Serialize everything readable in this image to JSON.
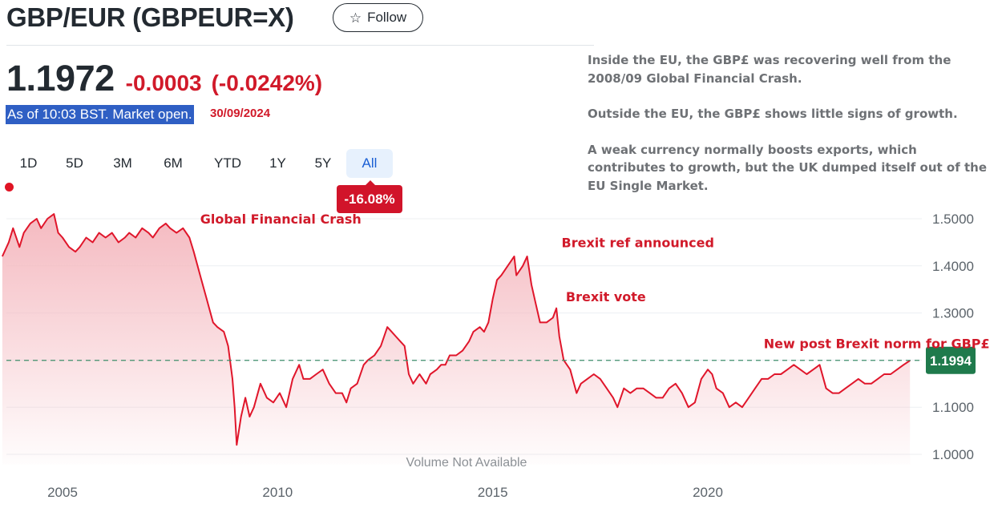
{
  "header": {
    "title": "GBP/EUR (GBPEUR=X)",
    "follow_label": "Follow",
    "star_icon": "star-icon"
  },
  "quote": {
    "price": "1.1972",
    "change": "-0.0003",
    "change_pct": "(-0.0242%)",
    "as_of": "As of 10:03 BST. Market open.",
    "date_note": "30/09/2024"
  },
  "commentary": [
    "Inside the EU, the GBP£ was recovering well from the 2008/09 Global Financial Crash.",
    "Outside the EU, the GBP£ shows little signs of growth.",
    "A weak currency normally boosts exports, which contributes to growth, but the UK dumped itself out of the EU Single Market."
  ],
  "range_tabs": [
    {
      "label": "1D",
      "active": false
    },
    {
      "label": "5D",
      "active": false
    },
    {
      "label": "3M",
      "active": false
    },
    {
      "label": "6M",
      "active": false
    },
    {
      "label": "YTD",
      "active": false
    },
    {
      "label": "1Y",
      "active": false
    },
    {
      "label": "5Y",
      "active": false
    },
    {
      "label": "All",
      "active": true
    }
  ],
  "period_change": "-16.08%",
  "colors": {
    "line": "#e0162b",
    "area_top": "#f4b6bd",
    "accent_red": "#d11a2a",
    "current_label_bg": "#1f7a4c",
    "reference_line": "#3f8f6b",
    "gridline": "#eceff2"
  },
  "chart_data": {
    "type": "area",
    "x_unit": "year",
    "xlim": [
      2003.6,
      2024.8
    ],
    "ylim": [
      0.98,
      1.53
    ],
    "x_ticks": [
      2005,
      2010,
      2015,
      2020
    ],
    "y_ticks": [
      1.0,
      1.1,
      1.2,
      1.3,
      1.4,
      1.5
    ],
    "y_tick_labels": [
      "1.0000",
      "1.1000",
      "1.2000",
      "1.3000",
      "1.4000",
      "1.5000"
    ],
    "grid": true,
    "current_value": "1.1994",
    "reference_line_value": 1.1994,
    "volume_note": "Volume Not Available",
    "series": [
      {
        "values": [
          [
            2003.6,
            1.42
          ],
          [
            2003.75,
            1.45
          ],
          [
            2003.85,
            1.48
          ],
          [
            2004.0,
            1.44
          ],
          [
            2004.1,
            1.47
          ],
          [
            2004.25,
            1.49
          ],
          [
            2004.4,
            1.5
          ],
          [
            2004.5,
            1.48
          ],
          [
            2004.65,
            1.5
          ],
          [
            2004.8,
            1.51
          ],
          [
            2004.9,
            1.47
          ],
          [
            2005.0,
            1.46
          ],
          [
            2005.15,
            1.44
          ],
          [
            2005.3,
            1.43
          ],
          [
            2005.4,
            1.44
          ],
          [
            2005.55,
            1.46
          ],
          [
            2005.7,
            1.45
          ],
          [
            2005.85,
            1.47
          ],
          [
            2006.0,
            1.46
          ],
          [
            2006.15,
            1.47
          ],
          [
            2006.3,
            1.45
          ],
          [
            2006.45,
            1.46
          ],
          [
            2006.55,
            1.47
          ],
          [
            2006.7,
            1.46
          ],
          [
            2006.85,
            1.48
          ],
          [
            2007.0,
            1.47
          ],
          [
            2007.1,
            1.46
          ],
          [
            2007.25,
            1.48
          ],
          [
            2007.4,
            1.49
          ],
          [
            2007.5,
            1.48
          ],
          [
            2007.65,
            1.47
          ],
          [
            2007.8,
            1.48
          ],
          [
            2007.95,
            1.46
          ],
          [
            2008.05,
            1.43
          ],
          [
            2008.2,
            1.38
          ],
          [
            2008.35,
            1.33
          ],
          [
            2008.5,
            1.28
          ],
          [
            2008.6,
            1.27
          ],
          [
            2008.75,
            1.26
          ],
          [
            2008.85,
            1.23
          ],
          [
            2008.95,
            1.16
          ],
          [
            2009.0,
            1.1
          ],
          [
            2009.05,
            1.02
          ],
          [
            2009.15,
            1.08
          ],
          [
            2009.25,
            1.12
          ],
          [
            2009.35,
            1.08
          ],
          [
            2009.45,
            1.1
          ],
          [
            2009.6,
            1.15
          ],
          [
            2009.75,
            1.12
          ],
          [
            2009.9,
            1.11
          ],
          [
            2010.05,
            1.13
          ],
          [
            2010.2,
            1.1
          ],
          [
            2010.35,
            1.16
          ],
          [
            2010.5,
            1.19
          ],
          [
            2010.6,
            1.16
          ],
          [
            2010.75,
            1.16
          ],
          [
            2010.9,
            1.17
          ],
          [
            2011.05,
            1.18
          ],
          [
            2011.2,
            1.15
          ],
          [
            2011.35,
            1.13
          ],
          [
            2011.5,
            1.13
          ],
          [
            2011.6,
            1.11
          ],
          [
            2011.7,
            1.14
          ],
          [
            2011.85,
            1.15
          ],
          [
            2012.0,
            1.19
          ],
          [
            2012.1,
            1.2
          ],
          [
            2012.25,
            1.21
          ],
          [
            2012.4,
            1.23
          ],
          [
            2012.55,
            1.27
          ],
          [
            2012.65,
            1.26
          ],
          [
            2012.75,
            1.25
          ],
          [
            2012.85,
            1.24
          ],
          [
            2012.95,
            1.23
          ],
          [
            2013.05,
            1.17
          ],
          [
            2013.15,
            1.15
          ],
          [
            2013.3,
            1.17
          ],
          [
            2013.45,
            1.15
          ],
          [
            2013.55,
            1.17
          ],
          [
            2013.7,
            1.18
          ],
          [
            2013.8,
            1.19
          ],
          [
            2013.9,
            1.19
          ],
          [
            2014.0,
            1.21
          ],
          [
            2014.15,
            1.21
          ],
          [
            2014.3,
            1.22
          ],
          [
            2014.45,
            1.24
          ],
          [
            2014.55,
            1.26
          ],
          [
            2014.7,
            1.27
          ],
          [
            2014.8,
            1.26
          ],
          [
            2014.9,
            1.28
          ],
          [
            2015.0,
            1.33
          ],
          [
            2015.1,
            1.37
          ],
          [
            2015.2,
            1.38
          ],
          [
            2015.35,
            1.4
          ],
          [
            2015.5,
            1.42
          ],
          [
            2015.55,
            1.38
          ],
          [
            2015.7,
            1.4
          ],
          [
            2015.8,
            1.42
          ],
          [
            2015.9,
            1.36
          ],
          [
            2016.0,
            1.32
          ],
          [
            2016.1,
            1.28
          ],
          [
            2016.25,
            1.28
          ],
          [
            2016.4,
            1.29
          ],
          [
            2016.48,
            1.31
          ],
          [
            2016.55,
            1.25
          ],
          [
            2016.65,
            1.2
          ],
          [
            2016.8,
            1.18
          ],
          [
            2016.95,
            1.13
          ],
          [
            2017.05,
            1.15
          ],
          [
            2017.2,
            1.16
          ],
          [
            2017.35,
            1.17
          ],
          [
            2017.5,
            1.16
          ],
          [
            2017.65,
            1.14
          ],
          [
            2017.8,
            1.12
          ],
          [
            2017.9,
            1.1
          ],
          [
            2018.05,
            1.14
          ],
          [
            2018.2,
            1.13
          ],
          [
            2018.35,
            1.14
          ],
          [
            2018.5,
            1.14
          ],
          [
            2018.65,
            1.13
          ],
          [
            2018.8,
            1.12
          ],
          [
            2018.95,
            1.12
          ],
          [
            2019.1,
            1.14
          ],
          [
            2019.25,
            1.15
          ],
          [
            2019.4,
            1.13
          ],
          [
            2019.55,
            1.1
          ],
          [
            2019.7,
            1.11
          ],
          [
            2019.85,
            1.16
          ],
          [
            2020.0,
            1.18
          ],
          [
            2020.1,
            1.17
          ],
          [
            2020.2,
            1.14
          ],
          [
            2020.35,
            1.13
          ],
          [
            2020.5,
            1.1
          ],
          [
            2020.65,
            1.11
          ],
          [
            2020.8,
            1.1
          ],
          [
            2020.95,
            1.12
          ],
          [
            2021.1,
            1.14
          ],
          [
            2021.25,
            1.16
          ],
          [
            2021.4,
            1.16
          ],
          [
            2021.55,
            1.17
          ],
          [
            2021.7,
            1.17
          ],
          [
            2021.85,
            1.18
          ],
          [
            2022.0,
            1.19
          ],
          [
            2022.15,
            1.18
          ],
          [
            2022.3,
            1.17
          ],
          [
            2022.45,
            1.18
          ],
          [
            2022.6,
            1.19
          ],
          [
            2022.75,
            1.14
          ],
          [
            2022.9,
            1.13
          ],
          [
            2023.05,
            1.13
          ],
          [
            2023.2,
            1.14
          ],
          [
            2023.35,
            1.15
          ],
          [
            2023.5,
            1.16
          ],
          [
            2023.65,
            1.15
          ],
          [
            2023.8,
            1.15
          ],
          [
            2023.95,
            1.16
          ],
          [
            2024.1,
            1.17
          ],
          [
            2024.25,
            1.17
          ],
          [
            2024.4,
            1.18
          ],
          [
            2024.55,
            1.19
          ],
          [
            2024.7,
            1.199
          ]
        ]
      }
    ],
    "annotations": [
      {
        "text": "Global Financial Crash",
        "x": 2008.2,
        "y": 1.49
      },
      {
        "text": "Brexit ref announced",
        "x": 2016.6,
        "y": 1.44
      },
      {
        "text": "Brexit vote",
        "x": 2016.7,
        "y": 1.325
      },
      {
        "text": "New post Brexit norm for GBP£",
        "x": 2021.3,
        "y": 1.225
      }
    ]
  }
}
